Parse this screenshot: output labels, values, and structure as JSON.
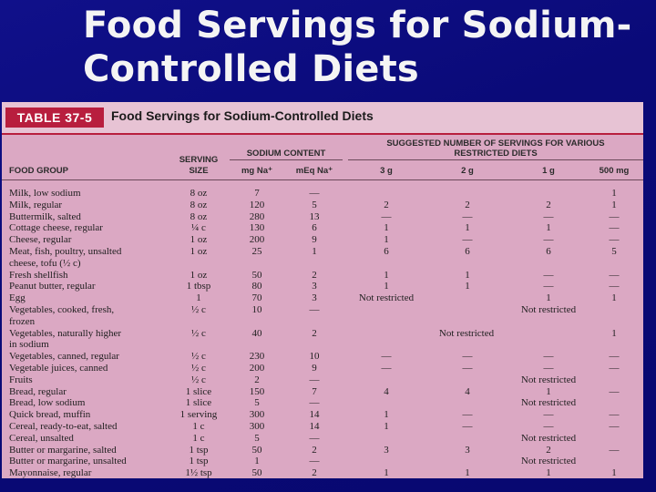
{
  "slide": {
    "title_line1": "Food Servings for Sodium-",
    "title_line2": "Controlled Diets"
  },
  "table": {
    "label": "TABLE 37-5",
    "caption": "Food Servings for Sodium-Controlled Diets",
    "headers": {
      "food_group": "FOOD GROUP",
      "serving_size_1": "SERVING",
      "serving_size_2": "SIZE",
      "sodium_content": "SODIUM CONTENT",
      "mg": "mg Na⁺",
      "meq": "mEq Na⁺",
      "suggested_1": "SUGGESTED NUMBER OF SERVINGS FOR VARIOUS",
      "suggested_2": "RESTRICTED DIETS",
      "d3g": "3 g",
      "d2g": "2 g",
      "d1g": "1 g",
      "d500": "500 mg"
    },
    "rows": [
      {
        "food": "Milk, low sodium",
        "size": "8 oz",
        "mg": "7",
        "meq": "—",
        "g3": "",
        "g2": "",
        "g1": "",
        "mg500": "1"
      },
      {
        "food": "Milk, regular",
        "size": "8 oz",
        "mg": "120",
        "meq": "5",
        "g3": "2",
        "g2": "2",
        "g1": "2",
        "mg500": "1"
      },
      {
        "food": "Buttermilk, salted",
        "size": "8 oz",
        "mg": "280",
        "meq": "13",
        "g3": "—",
        "g2": "—",
        "g1": "—",
        "mg500": "—"
      },
      {
        "food": "Cottage cheese, regular",
        "size": "¼ c",
        "mg": "130",
        "meq": "6",
        "g3": "1",
        "g2": "1",
        "g1": "1",
        "mg500": "—"
      },
      {
        "food": "Cheese, regular",
        "size": "1 oz",
        "mg": "200",
        "meq": "9",
        "g3": "1",
        "g2": "—",
        "g1": "—",
        "mg500": "—"
      },
      {
        "food": "Meat, fish, poultry, unsalted",
        "size": "1 oz",
        "mg": "25",
        "meq": "1",
        "g3": "6",
        "g2": "6",
        "g1": "6",
        "mg500": "5"
      },
      {
        "food": "  cheese, tofu (½ c)",
        "size": "",
        "mg": "",
        "meq": "",
        "g3": "",
        "g2": "",
        "g1": "",
        "mg500": ""
      },
      {
        "food": "Fresh shellfish",
        "size": "1 oz",
        "mg": "50",
        "meq": "2",
        "g3": "1",
        "g2": "1",
        "g1": "—",
        "mg500": "—"
      },
      {
        "food": "Peanut butter, regular",
        "size": "1 tbsp",
        "mg": "80",
        "meq": "3",
        "g3": "1",
        "g2": "1",
        "g1": "—",
        "mg500": "—"
      },
      {
        "food": "Egg",
        "size": "1",
        "mg": "70",
        "meq": "3",
        "g3": "Not restricted",
        "g2": "",
        "g1": "1",
        "mg500": "1"
      },
      {
        "food": "Vegetables, cooked, fresh,",
        "size": "½ c",
        "mg": "10",
        "meq": "—",
        "g3": "",
        "g2": "",
        "g1": "Not restricted",
        "mg500": ""
      },
      {
        "food": "  frozen",
        "size": "",
        "mg": "",
        "meq": "",
        "g3": "",
        "g2": "",
        "g1": "",
        "mg500": ""
      },
      {
        "food": "Vegetables, naturally higher",
        "size": "½ c",
        "mg": "40",
        "meq": "2",
        "g3": "",
        "g2": "Not restricted",
        "g1": "",
        "mg500": "1"
      },
      {
        "food": "  in sodium",
        "size": "",
        "mg": "",
        "meq": "",
        "g3": "",
        "g2": "",
        "g1": "",
        "mg500": ""
      },
      {
        "food": "Vegetables, canned, regular",
        "size": "½ c",
        "mg": "230",
        "meq": "10",
        "g3": "—",
        "g2": "—",
        "g1": "—",
        "mg500": "—"
      },
      {
        "food": "Vegetable juices, canned",
        "size": "½ c",
        "mg": "200",
        "meq": "9",
        "g3": "—",
        "g2": "—",
        "g1": "—",
        "mg500": "—"
      },
      {
        "food": "Fruits",
        "size": "½ c",
        "mg": "2",
        "meq": "—",
        "g3": "",
        "g2": "",
        "g1": "Not restricted",
        "mg500": ""
      },
      {
        "food": "Bread, regular",
        "size": "1 slice",
        "mg": "150",
        "meq": "7",
        "g3": "4",
        "g2": "4",
        "g1": "1",
        "mg500": "—"
      },
      {
        "food": "Bread, low sodium",
        "size": "1 slice",
        "mg": "5",
        "meq": "—",
        "g3": "",
        "g2": "",
        "g1": "Not restricted",
        "mg500": ""
      },
      {
        "food": "Quick bread, muffin",
        "size": "1 serving",
        "mg": "300",
        "meq": "14",
        "g3": "1",
        "g2": "—",
        "g1": "—",
        "mg500": "—"
      },
      {
        "food": "Cereal, ready-to-eat, salted",
        "size": "1 c",
        "mg": "300",
        "meq": "14",
        "g3": "1",
        "g2": "—",
        "g1": "—",
        "mg500": "—"
      },
      {
        "food": "Cereal, unsalted",
        "size": "1 c",
        "mg": "5",
        "meq": "—",
        "g3": "",
        "g2": "",
        "g1": "Not restricted",
        "mg500": ""
      },
      {
        "food": "Butter or margarine, salted",
        "size": "1 tsp",
        "mg": "50",
        "meq": "2",
        "g3": "3",
        "g2": "3",
        "g1": "2",
        "mg500": "—"
      },
      {
        "food": "Butter or margarine, unsalted",
        "size": "1 tsp",
        "mg": "1",
        "meq": "—",
        "g3": "",
        "g2": "",
        "g1": "Not restricted",
        "mg500": ""
      },
      {
        "food": "Mayonnaise, regular",
        "size": "1½ tsp",
        "mg": "50",
        "meq": "2",
        "g3": "1",
        "g2": "1",
        "g1": "1",
        "mg500": "1"
      }
    ]
  }
}
